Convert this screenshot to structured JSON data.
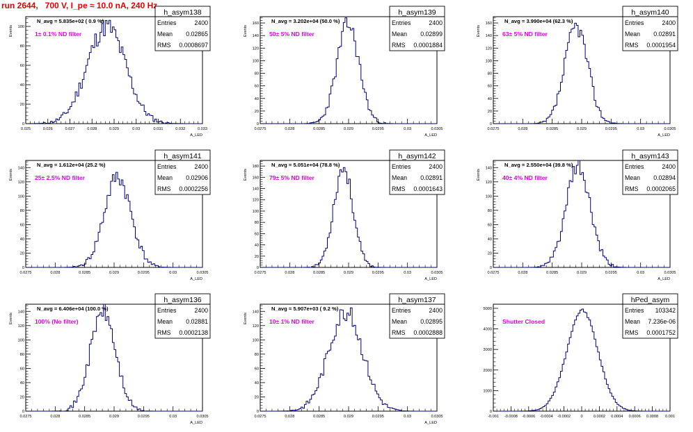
{
  "page_title": "run 2644,   700 V, I_pe ≈ 10.0 nA, 240 Hz",
  "colors": {
    "title": "#e60000",
    "annotation": "#e600e6",
    "histogram": "#00007f",
    "axis": "#000000"
  },
  "stats_labels": {
    "entries": "Entries",
    "mean": "Mean",
    "rms": "RMS"
  },
  "chart_data": [
    {
      "type": "histogram",
      "hist_name": "h_asym138",
      "n_avg_text": "N_avg = 5.835e+02 ( 0.9 %)",
      "annotation": "1± 0.1% ND filter",
      "stats": {
        "entries": "2400",
        "mean": "0.02865",
        "rms": "0.0008697"
      },
      "ylabel": "Events",
      "xlabel": "A_LED",
      "xlim": [
        0.025,
        0.033
      ],
      "ylim": [
        0,
        110
      ],
      "xticks": [
        "0.025",
        "0.026",
        "0.027",
        "0.028",
        "0.029",
        "0.03",
        "0.031",
        "0.032",
        "0.033"
      ],
      "yticks": [
        "0",
        "20",
        "40",
        "60",
        "80",
        "100"
      ],
      "shape": {
        "mean": 0.02865,
        "sigma": 0.00087,
        "peak": 100,
        "seed": 11
      }
    },
    {
      "type": "histogram",
      "hist_name": "h_asym139",
      "n_avg_text": "N_avg = 3.202e+04 (50.0 %)",
      "annotation": "50± 5% ND filter",
      "stats": {
        "entries": "2400",
        "mean": "0.02899",
        "rms": "0.0001884"
      },
      "ylabel": "Events",
      "xlabel": "A_LED",
      "xlim": [
        0.0275,
        0.0305
      ],
      "ylim": [
        0,
        170
      ],
      "xticks": [
        "0.0275",
        "0.028",
        "0.0285",
        "0.029",
        "0.0295",
        "0.03",
        "0.0305"
      ],
      "yticks": [
        "0",
        "20",
        "40",
        "60",
        "80",
        "100",
        "120",
        "140",
        "160"
      ],
      "shape": {
        "mean": 0.02899,
        "sigma": 0.000188,
        "peak": 158,
        "seed": 23
      }
    },
    {
      "type": "histogram",
      "hist_name": "h_asym140",
      "n_avg_text": "N_avg = 3.990e+04 (62.3 %)",
      "annotation": "63± 5% ND filter",
      "stats": {
        "entries": "2400",
        "mean": "0.02891",
        "rms": "0.0001954"
      },
      "ylabel": "Events",
      "xlabel": "A_LED",
      "xlim": [
        0.0275,
        0.0305
      ],
      "ylim": [
        0,
        170
      ],
      "xticks": [
        "0.0275",
        "0.028",
        "0.0285",
        "0.029",
        "0.0295",
        "0.03",
        "0.0305"
      ],
      "yticks": [
        "0",
        "20",
        "40",
        "60",
        "80",
        "100",
        "120",
        "140",
        "160"
      ],
      "shape": {
        "mean": 0.02891,
        "sigma": 0.000195,
        "peak": 155,
        "seed": 37
      }
    },
    {
      "type": "histogram",
      "hist_name": "h_asym141",
      "n_avg_text": "N_avg = 1.612e+04 (25.2 %)",
      "annotation": "25± 2.5% ND filter",
      "stats": {
        "entries": "2400",
        "mean": "0.02906",
        "rms": "0.0002256"
      },
      "ylabel": "Events",
      "xlabel": "A_LED",
      "xlim": [
        0.0275,
        0.0305
      ],
      "ylim": [
        0,
        150
      ],
      "xticks": [
        "0.0275",
        "0.028",
        "0.0285",
        "0.029",
        "0.0295",
        "0.03",
        "0.0305"
      ],
      "yticks": [
        "0",
        "20",
        "40",
        "60",
        "80",
        "100",
        "120",
        "140"
      ],
      "shape": {
        "mean": 0.02906,
        "sigma": 0.000226,
        "peak": 127,
        "seed": 41
      }
    },
    {
      "type": "histogram",
      "hist_name": "h_asym142",
      "n_avg_text": "N_avg = 5.051e+04 (78.8 %)",
      "annotation": "79± 5% ND filter",
      "stats": {
        "entries": "2400",
        "mean": "0.02891",
        "rms": "0.0001643"
      },
      "ylabel": "Events",
      "xlabel": "A_LED",
      "xlim": [
        0.0275,
        0.0305
      ],
      "ylim": [
        0,
        190
      ],
      "xticks": [
        "0.0275",
        "0.028",
        "0.0285",
        "0.029",
        "0.0295",
        "0.03",
        "0.0305"
      ],
      "yticks": [
        "0",
        "20",
        "40",
        "60",
        "80",
        "100",
        "120",
        "140",
        "160",
        "180"
      ],
      "shape": {
        "mean": 0.02891,
        "sigma": 0.000164,
        "peak": 178,
        "seed": 53
      }
    },
    {
      "type": "histogram",
      "hist_name": "h_asym143",
      "n_avg_text": "N_avg = 2.550e+04 (39.8 %)",
      "annotation": "40± 4% ND filter",
      "stats": {
        "entries": "2400",
        "mean": "0.02894",
        "rms": "0.0002065"
      },
      "ylabel": "Events",
      "xlabel": "A_LED",
      "xlim": [
        0.0275,
        0.0305
      ],
      "ylim": [
        0,
        150
      ],
      "xticks": [
        "0.0275",
        "0.028",
        "0.0285",
        "0.029",
        "0.0295",
        "0.03",
        "0.0305"
      ],
      "yticks": [
        "0",
        "20",
        "40",
        "60",
        "80",
        "100",
        "120",
        "140"
      ],
      "shape": {
        "mean": 0.02894,
        "sigma": 0.000206,
        "peak": 140,
        "seed": 61
      }
    },
    {
      "type": "histogram",
      "hist_name": "h_asym136",
      "n_avg_text": "N_avg = 6.406e+04 (100.0 %)",
      "annotation": "100% (No filter)",
      "stats": {
        "entries": "2400",
        "mean": "0.02881",
        "rms": "0.0002138"
      },
      "ylabel": "Events",
      "xlabel": "A_LED",
      "xlim": [
        0.0275,
        0.0305
      ],
      "ylim": [
        0,
        150
      ],
      "xticks": [
        "0.0275",
        "0.028",
        "0.0285",
        "0.029",
        "0.0295",
        "0.03",
        "0.0305"
      ],
      "yticks": [
        "0",
        "20",
        "40",
        "60",
        "80",
        "100",
        "120",
        "140"
      ],
      "shape": {
        "mean": 0.02881,
        "sigma": 0.000214,
        "peak": 140,
        "seed": 71
      }
    },
    {
      "type": "histogram",
      "hist_name": "h_asym137",
      "n_avg_text": "N_avg = 5.907e+03 ( 9.2 %)",
      "annotation": "10± 1% ND filter",
      "stats": {
        "entries": "2400",
        "mean": "0.02895",
        "rms": "0.0002888"
      },
      "ylabel": "Events",
      "xlabel": "A_LED",
      "xlim": [
        0.0275,
        0.0305
      ],
      "ylim": [
        0,
        150
      ],
      "xticks": [
        "0.0275",
        "0.028",
        "0.0285",
        "0.029",
        "0.0295",
        "0.03",
        "0.0305"
      ],
      "yticks": [
        "0",
        "20",
        "40",
        "60",
        "80",
        "100",
        "120",
        "140"
      ],
      "shape": {
        "mean": 0.02895,
        "sigma": 0.000289,
        "peak": 140,
        "seed": 83
      }
    },
    {
      "type": "histogram",
      "hist_name": "hPed_asym",
      "n_avg_text": "",
      "annotation": "Shutter Closed",
      "stats": {
        "entries": "103342",
        "mean": "7.236e-06",
        "rms": "0.0001752"
      },
      "ylabel": "",
      "xlabel": "",
      "xlim": [
        -0.001,
        0.001
      ],
      "ylim": [
        0,
        5200
      ],
      "xticks": [
        "-0.001",
        "-0.0008",
        "-0.0006",
        "-0.0004",
        "-0.0002",
        "0",
        "0.0002",
        "0.0004",
        "0.0006",
        "0.0008",
        "0.001"
      ],
      "yticks": [
        "0",
        "1000",
        "2000",
        "3000",
        "4000",
        "5000"
      ],
      "shape": {
        "mean": 7.2e-06,
        "sigma": 0.000175,
        "peak": 4900,
        "seed": 97
      }
    }
  ]
}
